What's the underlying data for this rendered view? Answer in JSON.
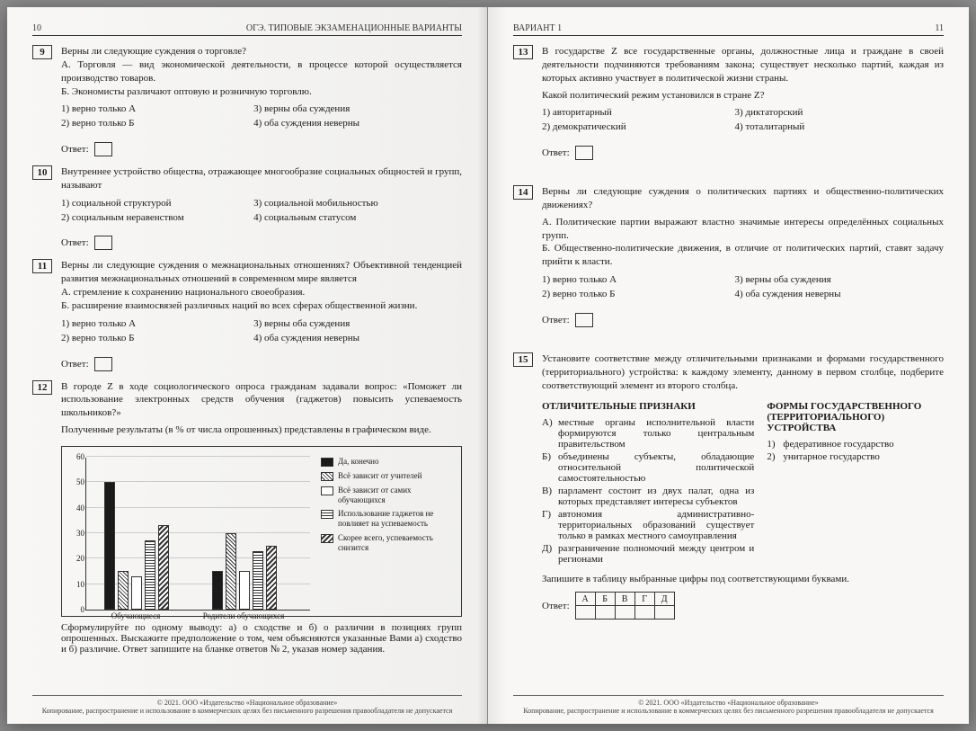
{
  "header": {
    "book_title": "ОГЭ. ТИПОВЫЕ ЭКЗАМЕНАЦИОННЫЕ ВАРИАНТЫ",
    "variant": "ВАРИАНТ 1",
    "page_left": "10",
    "page_right": "11"
  },
  "labels": {
    "answer": "Ответ:"
  },
  "q9": {
    "num": "9",
    "prompt": "Верны ли следующие суждения о торговле?",
    "a": "А. Торговля — вид экономической деятельности, в процессе которой осуществляется производство товаров.",
    "b": "Б. Экономисты различают оптовую и розничную торговлю.",
    "o1": "1) верно только А",
    "o2": "2) верно только Б",
    "o3": "3) верны оба суждения",
    "o4": "4) оба суждения неверны"
  },
  "q10": {
    "num": "10",
    "prompt": "Внутреннее устройство общества, отражающее многообразие социальных общностей и групп, называют",
    "o1": "1) социальной структурой",
    "o2": "2) социальным неравенством",
    "o3": "3) социальной мобильностью",
    "o4": "4) социальным статусом"
  },
  "q11": {
    "num": "11",
    "prompt": "Верны ли следующие суждения о межнациональных отношениях? Объективной тенденцией развития межнациональных отношений в современном мире является",
    "a": "А. стремление к сохранению национального своеобразия.",
    "b": "Б. расширение взаимосвязей различных наций во всех сферах общественной жизни.",
    "o1": "1) верно только А",
    "o2": "2) верно только Б",
    "o3": "3) верны оба суждения",
    "o4": "4) оба суждения неверны"
  },
  "q12": {
    "num": "12",
    "prompt": "В городе Z в ходе социологического опроса гражданам задавали вопрос: «Поможет ли использование электронных средств обучения (гаджетов) повысить успеваемость школьников?»",
    "sub": "Полученные результаты (в % от числа опрошенных) представлены в графическом виде.",
    "chart": {
      "ymax": 60,
      "ystep": 10,
      "groups": [
        {
          "label": "Обучающиеся",
          "values": [
            50,
            15,
            13,
            27,
            33
          ]
        },
        {
          "label": "Родители обучающихся",
          "values": [
            15,
            30,
            15,
            23,
            25
          ]
        }
      ],
      "series": [
        {
          "label": "Да, конечно",
          "fill": "#1a1a1a"
        },
        {
          "label": "Всё зависит от учителей",
          "fill": "repeating-linear-gradient(45deg,#fff,#fff 2px,#333 2px,#333 3px)"
        },
        {
          "label": "Всё зависит от самих обучающихся",
          "fill": "#fff"
        },
        {
          "label": "Использование гаджетов не повлияет на успеваемость",
          "fill": "repeating-linear-gradient(0deg,#fff,#fff 2px,#333 2px,#333 3px)"
        },
        {
          "label": "Скорее всего, успеваемость снизится",
          "fill": "repeating-linear-gradient(135deg,#fff,#fff 2px,#333 2px,#333 4px)"
        }
      ]
    },
    "task": "Сформулируйте по одному выводу: а) о сходстве и б) о различии в позициях групп опрошенных. Выскажите предположение о том, чем объясняются указанные Вами а) сходство и б) различие. Ответ запишите на бланке ответов № 2, указав номер задания."
  },
  "q13": {
    "num": "13",
    "prompt": "В государстве Z все государственные органы, должностные лица и граждане в своей деятельности подчиняются требованиям закона; существует несколько партий, каждая из которых активно участвует в политической жизни страны.",
    "sub": "Какой политический режим установился в стране Z?",
    "o1": "1) авторитарный",
    "o2": "2) демократический",
    "o3": "3) диктаторский",
    "o4": "4) тоталитарный"
  },
  "q14": {
    "num": "14",
    "prompt": "Верны ли следующие суждения о политических партиях и общественно-политических движениях?",
    "a": "А. Политические партии выражают властно значимые интересы определённых социальных групп.",
    "b": "Б. Общественно-политические движения, в отличие от политических партий, ставят задачу прийти к власти.",
    "o1": "1) верно только А",
    "o2": "2) верно только Б",
    "o3": "3) верны оба суждения",
    "o4": "4) оба суждения неверны"
  },
  "q15": {
    "num": "15",
    "prompt": "Установите соответствие между отличительными признаками и формами государственного (территориального) устройства: к каждому элементу, данному в первом столбце, подберите соответствующий элемент из второго столбца.",
    "left_head": "ОТЛИЧИТЕЛЬНЫЕ ПРИЗНАКИ",
    "right_head": "ФОРМЫ ГОСУДАРСТВЕННОГО (ТЕРРИТОРИАЛЬНОГО) УСТРОЙСТВА",
    "left": [
      {
        "k": "А)",
        "t": "местные органы исполнительной власти формируются только центральным правительством"
      },
      {
        "k": "Б)",
        "t": "объединены субъекты, обладающие относительной политической самостоятельностью"
      },
      {
        "k": "В)",
        "t": "парламент состоит из двух палат, одна из которых представляет интересы субъектов"
      },
      {
        "k": "Г)",
        "t": "автономия административно-территориальных образований существует только в рамках местного самоуправления"
      },
      {
        "k": "Д)",
        "t": "разграничение полномочий между центром и регионами"
      }
    ],
    "right": [
      {
        "k": "1)",
        "t": "федеративное государство"
      },
      {
        "k": "2)",
        "t": "унитарное государство"
      }
    ],
    "task": "Запишите в таблицу выбранные цифры под соответствующими буквами.",
    "cols": [
      "А",
      "Б",
      "В",
      "Г",
      "Д"
    ]
  },
  "footer": {
    "copy": "© 2021. ООО «Издательство «Национальное образование»",
    "note": "Копирование, распространение и использование в коммерческих целях без письменного разрешения правообладателя не допускается"
  }
}
